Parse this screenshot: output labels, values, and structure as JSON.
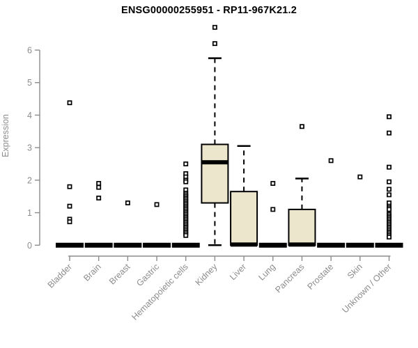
{
  "chart_data": {
    "type": "boxplot",
    "title": "ENSG00000255951 - RP11-967K21.2",
    "ylabel": "Expression",
    "xlabel": "",
    "ylim": [
      0,
      6.8
    ],
    "yticks": [
      0,
      1,
      2,
      3,
      4,
      5,
      6
    ],
    "grid": false,
    "legend": "none",
    "categories": [
      "Bladder",
      "Brain",
      "Breast",
      "Gastric",
      "Hematopoietic cells",
      "Kidney",
      "Liver",
      "Lung",
      "Pancreas",
      "Prostate",
      "Skin",
      "Unknown / Other"
    ],
    "series": [
      {
        "category": "Bladder",
        "q1": 0,
        "median": 0,
        "q3": 0,
        "whisker_low": 0,
        "whisker_high": 0,
        "outliers": [
          4.38,
          1.8,
          1.2,
          0.8,
          0.72
        ]
      },
      {
        "category": "Brain",
        "q1": 0,
        "median": 0,
        "q3": 0,
        "whisker_low": 0,
        "whisker_high": 0,
        "outliers": [
          1.9,
          1.78,
          1.45
        ]
      },
      {
        "category": "Breast",
        "q1": 0,
        "median": 0,
        "q3": 0,
        "whisker_low": 0,
        "whisker_high": 0,
        "outliers": [
          1.3
        ]
      },
      {
        "category": "Gastric",
        "q1": 0,
        "median": 0,
        "q3": 0,
        "whisker_low": 0,
        "whisker_high": 0,
        "outliers": [
          1.25
        ]
      },
      {
        "category": "Hematopoietic cells",
        "q1": 0,
        "median": 0,
        "q3": 0,
        "whisker_low": 0,
        "whisker_high": 0,
        "outliers": [
          2.5,
          2.2,
          2.1,
          2.0,
          1.95,
          1.7,
          1.6,
          1.55,
          1.5,
          1.45,
          1.4,
          1.35,
          1.3,
          1.25,
          1.2,
          1.15,
          1.1,
          1.05,
          1.0,
          0.95,
          0.9,
          0.85,
          0.8,
          0.75,
          0.7,
          0.65,
          0.6,
          0.55,
          0.5,
          0.45,
          0.4,
          0.35,
          0.3
        ]
      },
      {
        "category": "Kidney",
        "q1": 1.3,
        "median": 2.55,
        "q3": 3.1,
        "whisker_low": 0,
        "whisker_high": 5.75,
        "outliers": [
          6.7,
          6.2
        ]
      },
      {
        "category": "Liver",
        "q1": 0,
        "median": 0.02,
        "q3": 1.65,
        "whisker_low": 0,
        "whisker_high": 3.05,
        "outliers": []
      },
      {
        "category": "Lung",
        "q1": 0,
        "median": 0,
        "q3": 0,
        "whisker_low": 0,
        "whisker_high": 0,
        "outliers": [
          1.9,
          1.1
        ]
      },
      {
        "category": "Pancreas",
        "q1": 0,
        "median": 0.02,
        "q3": 1.1,
        "whisker_low": 0,
        "whisker_high": 2.05,
        "outliers": [
          3.65
        ]
      },
      {
        "category": "Prostate",
        "q1": 0,
        "median": 0,
        "q3": 0,
        "whisker_low": 0,
        "whisker_high": 0,
        "outliers": [
          2.6
        ]
      },
      {
        "category": "Skin",
        "q1": 0,
        "median": 0,
        "q3": 0,
        "whisker_low": 0,
        "whisker_high": 0,
        "outliers": [
          2.1
        ]
      },
      {
        "category": "Unknown / Other",
        "q1": 0,
        "median": 0,
        "q3": 0,
        "whisker_low": 0,
        "whisker_high": 0,
        "outliers": [
          3.95,
          3.45,
          2.4,
          1.95,
          1.72,
          1.55,
          1.3,
          1.2,
          1.15,
          1.1,
          0.95,
          0.9,
          0.85,
          0.8,
          0.75,
          0.7,
          0.65,
          0.6,
          0.55,
          0.5,
          0.45,
          0.4,
          0.35,
          0.3,
          0.25
        ]
      }
    ],
    "colors": {
      "box_fill": "#ECE6CD",
      "box_stroke": "#000000",
      "median": "#000000",
      "whisker": "#000000",
      "outlier_stroke": "#000000",
      "outlier_fill": "#ffffff",
      "axis": "#8c8c8c",
      "tick_label": "#8c8c8c",
      "title": "#000000"
    }
  }
}
